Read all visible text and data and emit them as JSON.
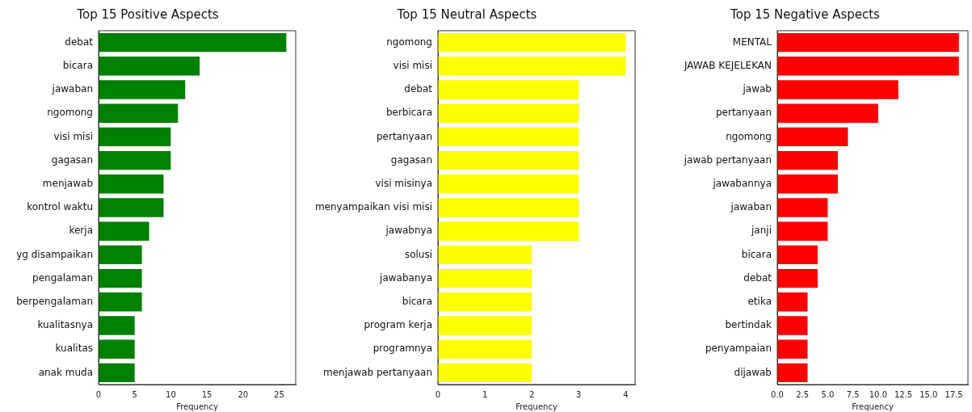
{
  "chart_data": [
    {
      "type": "bar",
      "orientation": "horizontal",
      "title": "Top 15 Positive Aspects",
      "xlabel": "Frequency",
      "categories": [
        "debat",
        "bicara",
        "jawaban",
        "ngomong",
        "visi misi",
        "gagasan",
        "menjawab",
        "kontrol waktu",
        "kerja",
        "yg disampaikan",
        "pengalaman",
        "berpengalaman",
        "kualitasnya",
        "kualitas",
        "anak muda"
      ],
      "values": [
        26,
        14,
        12,
        11,
        10,
        10,
        9,
        9,
        7,
        6,
        6,
        6,
        5,
        5,
        5
      ],
      "color": "#008000",
      "xlim": [
        0,
        27.3
      ],
      "xticks": [
        0,
        5,
        10,
        15,
        20,
        25
      ],
      "grid": false,
      "legend": false
    },
    {
      "type": "bar",
      "orientation": "horizontal",
      "title": "Top 15 Neutral Aspects",
      "xlabel": "Frequency",
      "categories": [
        "ngomong",
        "visi misi",
        "debat",
        "berbicara",
        "pertanyaan",
        "gagasan",
        "visi misinya",
        "menyampaikan visi misi",
        "jawabnya",
        "solusi",
        "jawabanya",
        "bicara",
        "program kerja",
        "programnya",
        "menjawab pertanyaan"
      ],
      "values": [
        4,
        4,
        3,
        3,
        3,
        3,
        3,
        3,
        3,
        2,
        2,
        2,
        2,
        2,
        2
      ],
      "color": "#ffff00",
      "xlim": [
        0,
        4.2
      ],
      "xticks": [
        0,
        1,
        2,
        3,
        4
      ],
      "grid": false,
      "legend": false
    },
    {
      "type": "bar",
      "orientation": "horizontal",
      "title": "Top 15 Negative Aspects",
      "xlabel": "Frequency",
      "categories": [
        "MENTAL",
        "JAWAB KEJELEKAN",
        "jawab",
        "pertanyaan",
        "ngomong",
        "jawab pertanyaan",
        "jawabannya",
        "jawaban",
        "janji",
        "bicara",
        "debat",
        "etika",
        "bertindak",
        "penyampaian",
        "dijawab"
      ],
      "values": [
        18,
        18,
        12,
        10,
        7,
        6,
        6,
        5,
        5,
        4,
        4,
        3,
        3,
        3,
        3
      ],
      "color": "#ff0000",
      "xlim": [
        0,
        18.9
      ],
      "xticks": [
        {
          "value": 0,
          "label": "0.0"
        },
        {
          "value": 2.5,
          "label": "2.5"
        },
        {
          "value": 5,
          "label": "5.0"
        },
        {
          "value": 7.5,
          "label": "7.5"
        },
        {
          "value": 10,
          "label": "10.0"
        },
        {
          "value": 12.5,
          "label": "12.5"
        },
        {
          "value": 15,
          "label": "15.0"
        },
        {
          "value": 17.5,
          "label": "17.5"
        }
      ],
      "grid": false,
      "legend": false
    }
  ]
}
